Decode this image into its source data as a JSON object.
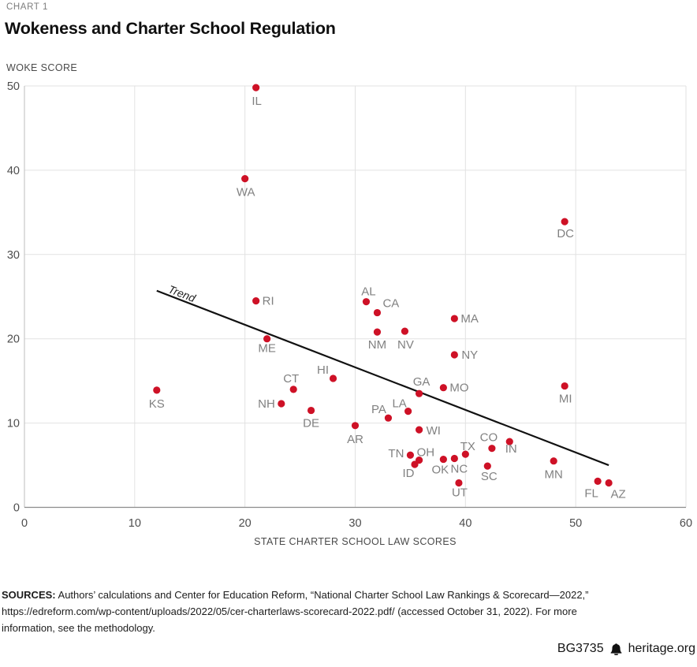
{
  "chart_data": {
    "type": "scatter",
    "kicker": "CHART 1",
    "title": "Wokeness and Charter School Regulation",
    "xlabel": "STATE CHARTER SCHOOL LAW SCORES",
    "ylabel": "WOKE SCORE",
    "xlim": [
      0,
      60
    ],
    "ylim": [
      0,
      50
    ],
    "x_ticks": [
      0,
      10,
      20,
      30,
      40,
      50,
      60
    ],
    "y_ticks": [
      0,
      10,
      20,
      30,
      40,
      50
    ],
    "grid": true,
    "legend": "none",
    "point_color": "#ce1126",
    "trend": {
      "label": "Trend",
      "x1": 12,
      "y1": 25.7,
      "x2": 53,
      "y2": 5.0
    },
    "points": [
      {
        "state": "IL",
        "law_score": 21,
        "woke_score": 49.8,
        "lp": [
          1,
          22,
          "middle"
        ]
      },
      {
        "state": "WA",
        "law_score": 20,
        "woke_score": 39.0,
        "lp": [
          1,
          22,
          "middle"
        ]
      },
      {
        "state": "DC",
        "law_score": 49,
        "woke_score": 33.9,
        "lp": [
          1,
          20,
          "middle"
        ]
      },
      {
        "state": "RI",
        "law_score": 21,
        "woke_score": 24.5,
        "lp": [
          8,
          5,
          "start"
        ]
      },
      {
        "state": "AL",
        "law_score": 31,
        "woke_score": 24.4,
        "lp": [
          3,
          -8,
          "middle"
        ]
      },
      {
        "state": "CA",
        "law_score": 32,
        "woke_score": 23.1,
        "lp": [
          7,
          -7,
          "start"
        ]
      },
      {
        "state": "MA",
        "law_score": 39,
        "woke_score": 22.4,
        "lp": [
          8,
          5,
          "start"
        ]
      },
      {
        "state": "NV",
        "law_score": 34.5,
        "woke_score": 20.9,
        "lp": [
          1,
          22,
          "middle"
        ]
      },
      {
        "state": "NM",
        "law_score": 32,
        "woke_score": 20.8,
        "lp": [
          0,
          21,
          "middle"
        ]
      },
      {
        "state": "ME",
        "law_score": 22,
        "woke_score": 20.0,
        "lp": [
          0,
          17,
          "middle"
        ]
      },
      {
        "state": "NY",
        "law_score": 39,
        "woke_score": 18.1,
        "lp": [
          9,
          5,
          "start"
        ]
      },
      {
        "state": "HI",
        "law_score": 28,
        "woke_score": 15.3,
        "lp": [
          -13,
          -6,
          "middle"
        ]
      },
      {
        "state": "MI",
        "law_score": 49,
        "woke_score": 14.4,
        "lp": [
          1,
          21,
          "middle"
        ]
      },
      {
        "state": "MO",
        "law_score": 38,
        "woke_score": 14.2,
        "lp": [
          8,
          5,
          "start"
        ]
      },
      {
        "state": "CT",
        "law_score": 24.4,
        "woke_score": 14.0,
        "lp": [
          -3,
          -9,
          "middle"
        ]
      },
      {
        "state": "KS",
        "law_score": 12,
        "woke_score": 13.9,
        "lp": [
          0,
          22,
          "middle"
        ]
      },
      {
        "state": "GA",
        "law_score": 35.8,
        "woke_score": 13.5,
        "lp": [
          3,
          -10,
          "middle"
        ]
      },
      {
        "state": "NH",
        "law_score": 23.3,
        "woke_score": 12.3,
        "lp": [
          -8,
          5,
          "end"
        ]
      },
      {
        "state": "DE",
        "law_score": 26,
        "woke_score": 11.5,
        "lp": [
          0,
          21,
          "middle"
        ]
      },
      {
        "state": "LA",
        "law_score": 34.8,
        "woke_score": 11.4,
        "lp": [
          -11,
          -5,
          "middle"
        ]
      },
      {
        "state": "PA",
        "law_score": 33,
        "woke_score": 10.6,
        "lp": [
          -12,
          -6,
          "middle"
        ]
      },
      {
        "state": "AR",
        "law_score": 30,
        "woke_score": 9.7,
        "lp": [
          0,
          22,
          "middle"
        ]
      },
      {
        "state": "WI",
        "law_score": 35.8,
        "woke_score": 9.2,
        "lp": [
          9,
          6,
          "start"
        ]
      },
      {
        "state": "IN",
        "law_score": 44,
        "woke_score": 7.8,
        "lp": [
          2,
          14,
          "middle"
        ]
      },
      {
        "state": "CO",
        "law_score": 42.4,
        "woke_score": 7.0,
        "lp": [
          -4,
          -9,
          "middle"
        ]
      },
      {
        "state": "TX",
        "law_score": 40,
        "woke_score": 6.3,
        "lp": [
          3,
          -5,
          "middle"
        ]
      },
      {
        "state": "TN",
        "law_score": 35,
        "woke_score": 6.2,
        "lp": [
          -8,
          3,
          "end"
        ]
      },
      {
        "state": "NC",
        "law_score": 39,
        "woke_score": 5.8,
        "lp": [
          6,
          18,
          "middle"
        ]
      },
      {
        "state": "OK",
        "law_score": 38,
        "woke_score": 5.7,
        "lp": [
          -4,
          18,
          "middle"
        ]
      },
      {
        "state": "OH",
        "law_score": 35.8,
        "woke_score": 5.6,
        "lp": [
          -3,
          -5,
          "start"
        ]
      },
      {
        "state": "MN",
        "law_score": 48,
        "woke_score": 5.5,
        "lp": [
          0,
          22,
          "middle"
        ]
      },
      {
        "state": "ID",
        "law_score": 35.4,
        "woke_score": 5.1,
        "lp": [
          -8,
          16,
          "middle"
        ]
      },
      {
        "state": "SC",
        "law_score": 42,
        "woke_score": 4.9,
        "lp": [
          2,
          18,
          "middle"
        ]
      },
      {
        "state": "FL",
        "law_score": 52,
        "woke_score": 3.1,
        "lp": [
          -8,
          20,
          "middle"
        ]
      },
      {
        "state": "UT",
        "law_score": 39.4,
        "woke_score": 2.9,
        "lp": [
          1,
          17,
          "middle"
        ]
      },
      {
        "state": "AZ",
        "law_score": 53,
        "woke_score": 2.9,
        "lp": [
          12,
          19,
          "middle"
        ]
      }
    ]
  },
  "footer": {
    "sources_label": "SOURCES:",
    "sources_text": "Authors’ calculations and Center for Education Reform, “National Charter School Law Rankings & Scorecard—2022,” https://edreform.com/wp-content/uploads/2022/05/cer-charterlaws-scorecard-2022.pdf/ (accessed October 31, 2022). For more information, see the methodology.",
    "doc_id": "BG3735",
    "site": "heritage.org"
  }
}
